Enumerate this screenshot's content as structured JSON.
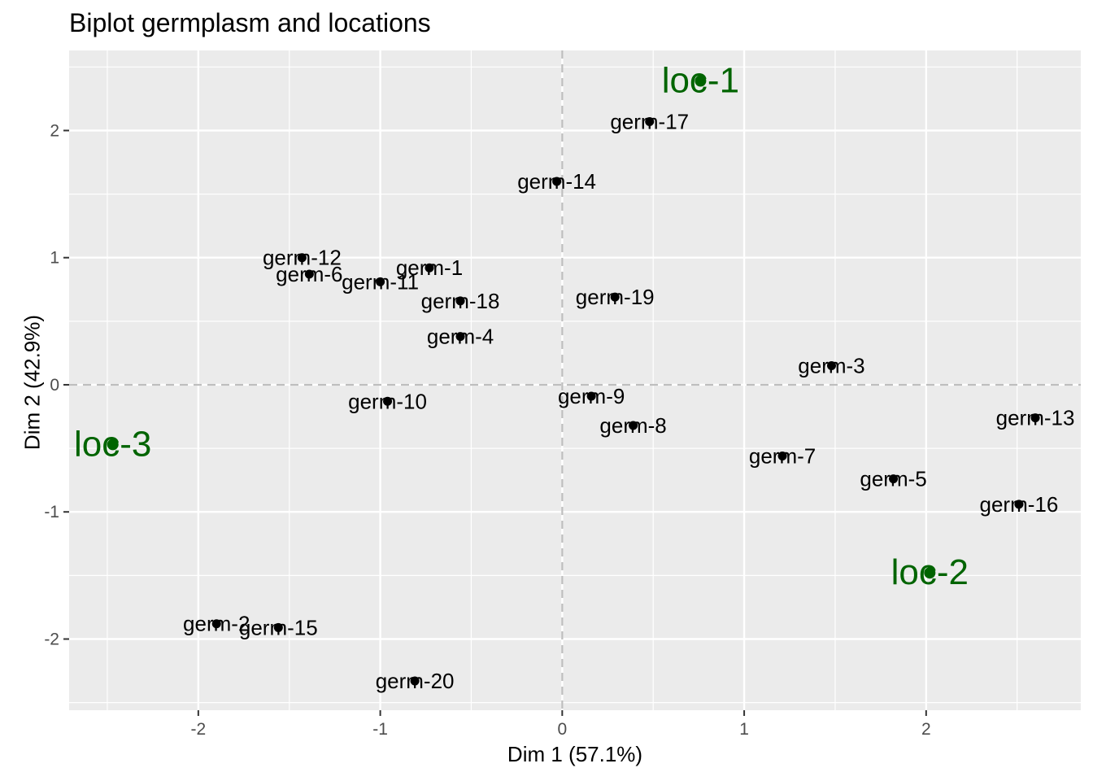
{
  "chart_data": {
    "type": "scatter",
    "title": "Biplot germplasm and locations",
    "xlabel": "Dim 1 (57.1%)",
    "ylabel": "Dim 2 (42.9%)",
    "xlim": [
      -2.71,
      2.85
    ],
    "ylim": [
      -2.56,
      2.63
    ],
    "xticks": [
      -2,
      -1,
      0,
      1,
      2
    ],
    "yticks": [
      -2,
      -1,
      0,
      1,
      2
    ],
    "grid": true,
    "reference_lines": {
      "x": 0,
      "y": 0,
      "style": "dashed"
    },
    "series": [
      {
        "name": "germplasm",
        "color": "#000000",
        "points": [
          {
            "label": "germ-1",
            "x": -0.73,
            "y": 0.92
          },
          {
            "label": "germ-2",
            "x": -1.9,
            "y": -1.88
          },
          {
            "label": "germ-3",
            "x": 1.48,
            "y": 0.15
          },
          {
            "label": "germ-4",
            "x": -0.56,
            "y": 0.38
          },
          {
            "label": "germ-5",
            "x": 1.82,
            "y": -0.74
          },
          {
            "label": "germ-6",
            "x": -1.39,
            "y": 0.87
          },
          {
            "label": "germ-7",
            "x": 1.21,
            "y": -0.56
          },
          {
            "label": "germ-8",
            "x": 0.39,
            "y": -0.32
          },
          {
            "label": "germ-9",
            "x": 0.16,
            "y": -0.09
          },
          {
            "label": "germ-10",
            "x": -0.96,
            "y": -0.13
          },
          {
            "label": "germ-11",
            "x": -1.0,
            "y": 0.81
          },
          {
            "label": "germ-12",
            "x": -1.43,
            "y": 1.0
          },
          {
            "label": "germ-13",
            "x": 2.6,
            "y": -0.26
          },
          {
            "label": "germ-14",
            "x": -0.03,
            "y": 1.6
          },
          {
            "label": "germ-15",
            "x": -1.56,
            "y": -1.91
          },
          {
            "label": "germ-16",
            "x": 2.51,
            "y": -0.94
          },
          {
            "label": "germ-17",
            "x": 0.48,
            "y": 2.07
          },
          {
            "label": "germ-18",
            "x": -0.56,
            "y": 0.66
          },
          {
            "label": "germ-19",
            "x": 0.29,
            "y": 0.69
          },
          {
            "label": "germ-20",
            "x": -0.81,
            "y": -2.33
          }
        ]
      },
      {
        "name": "locations",
        "color": "#006400",
        "points": [
          {
            "label": "loc-1",
            "x": 0.76,
            "y": 2.39
          },
          {
            "label": "loc-2",
            "x": 2.02,
            "y": -1.48
          },
          {
            "label": "loc-3",
            "x": -2.47,
            "y": -0.47
          }
        ]
      }
    ]
  }
}
